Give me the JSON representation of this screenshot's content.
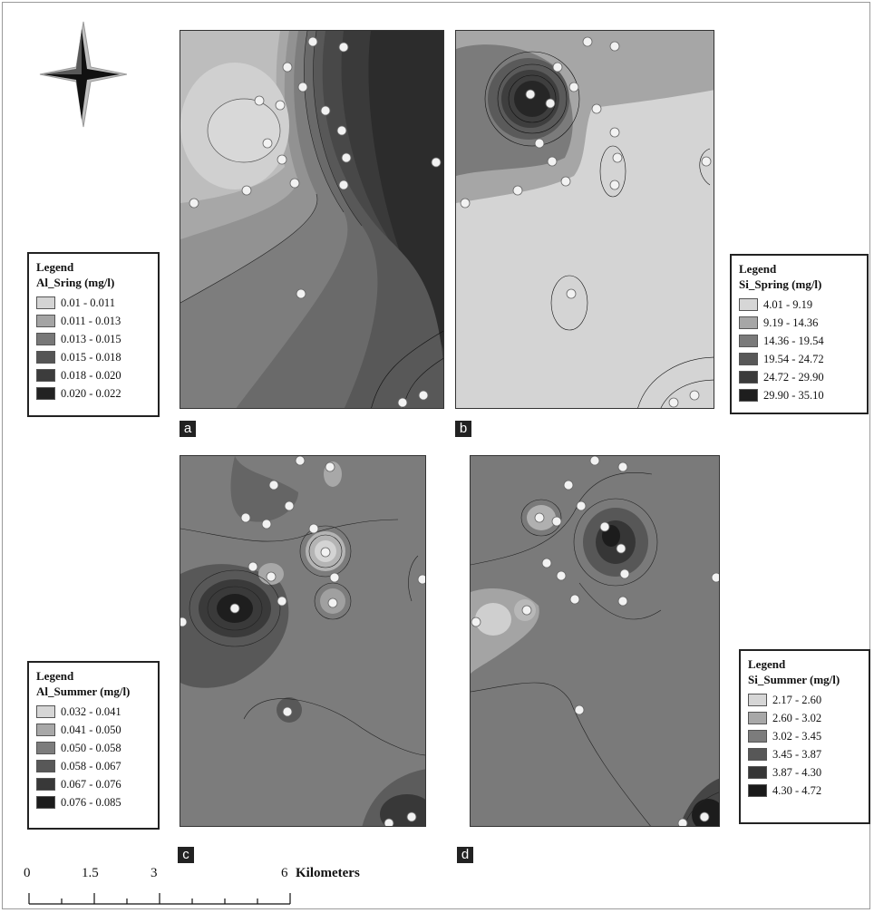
{
  "panels": {
    "a": {
      "tag": "a",
      "legend_title": "Legend",
      "legend_subtitle": "Al_Sring (mg/l)",
      "classes": [
        {
          "label": "0.01 - 0.011",
          "color": "#d4d4d4"
        },
        {
          "label": "0.011 - 0.013",
          "color": "#a4a4a4"
        },
        {
          "label": "0.013 - 0.015",
          "color": "#787878"
        },
        {
          "label": "0.015 - 0.018",
          "color": "#555555"
        },
        {
          "label": "0.018 - 0.020",
          "color": "#3c3c3c"
        },
        {
          "label": "0.020 - 0.022",
          "color": "#222222"
        }
      ]
    },
    "b": {
      "tag": "b",
      "legend_title": "Legend",
      "legend_subtitle": "Si_Spring (mg/l)",
      "classes": [
        {
          "label": "4.01 - 9.19",
          "color": "#d6d6d6"
        },
        {
          "label": "9.19 - 14.36",
          "color": "#a6a6a6"
        },
        {
          "label": "14.36 - 19.54",
          "color": "#7a7a7a"
        },
        {
          "label": "19.54 - 24.72",
          "color": "#585858"
        },
        {
          "label": "24.72 - 29.90",
          "color": "#3a3a3a"
        },
        {
          "label": "29.90 - 35.10",
          "color": "#1e1e1e"
        }
      ]
    },
    "c": {
      "tag": "c",
      "legend_title": "Legend",
      "legend_subtitle": "Al_Summer (mg/l)",
      "classes": [
        {
          "label": "0.032 - 0.041",
          "color": "#d6d6d6"
        },
        {
          "label": "0.041 - 0.050",
          "color": "#a8a8a8"
        },
        {
          "label": "0.050 - 0.058",
          "color": "#7c7c7c"
        },
        {
          "label": "0.058 - 0.067",
          "color": "#585858"
        },
        {
          "label": "0.067 - 0.076",
          "color": "#383838"
        },
        {
          "label": "0.076 - 0.085",
          "color": "#1c1c1c"
        }
      ]
    },
    "d": {
      "tag": "d",
      "legend_title": "Legend",
      "legend_subtitle": "Si_Summer (mg/l)",
      "classes": [
        {
          "label": "2.17 - 2.60",
          "color": "#d6d6d6"
        },
        {
          "label": "2.60 - 3.02",
          "color": "#a8a8a8"
        },
        {
          "label": "3.02 - 3.45",
          "color": "#7c7c7c"
        },
        {
          "label": "3.45 - 3.87",
          "color": "#575757"
        },
        {
          "label": "3.87 - 4.30",
          "color": "#363636"
        },
        {
          "label": "4.30 - 4.72",
          "color": "#1a1a1a"
        }
      ]
    }
  },
  "scale_bar": {
    "ticks": [
      "0",
      "1.5",
      "3",
      "6"
    ],
    "unit": "Kilometers"
  },
  "north_arrow_icon": "compass-star-icon"
}
